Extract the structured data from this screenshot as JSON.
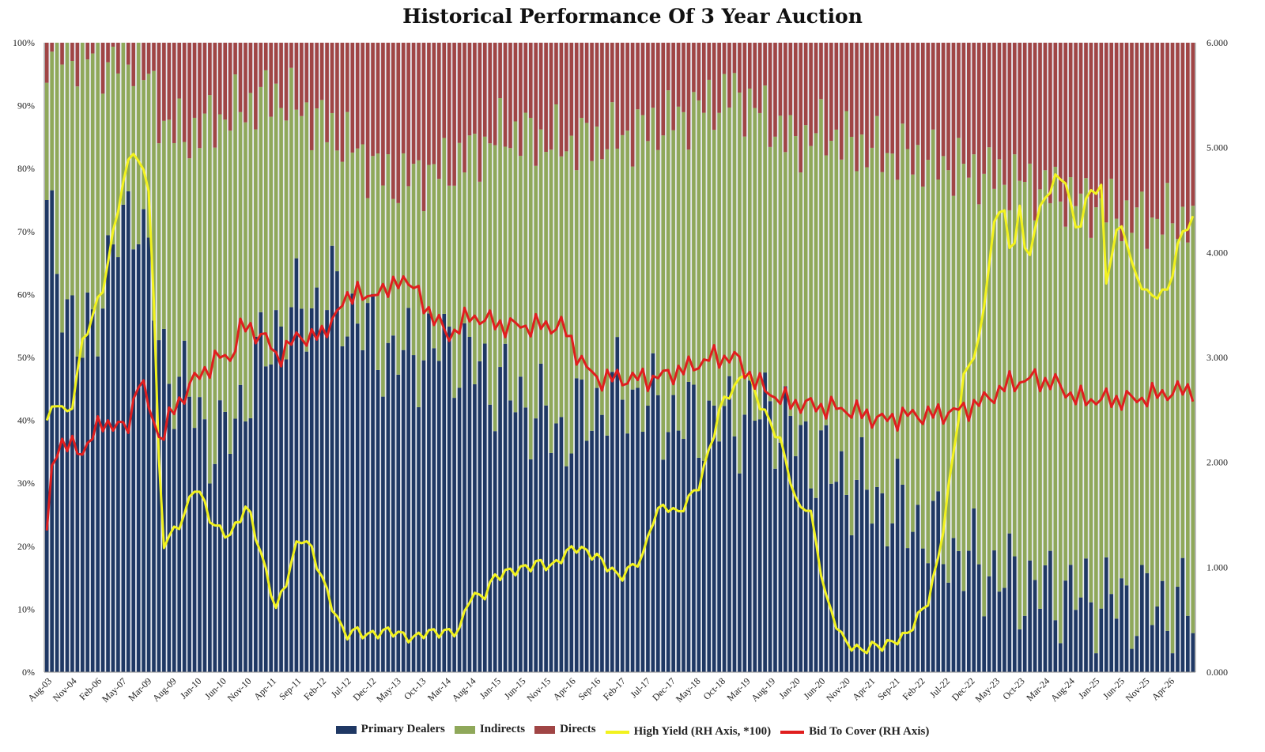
{
  "title": "Historical Performance Of 3 Year Auction",
  "colors": {
    "primary_dealers": "#1f3864",
    "indirects": "#8fa85a",
    "directs": "#a04545",
    "high_yield": "#f2f21e",
    "bid_to_cover": "#e01e1e",
    "bar_gap": "#e9ecf3"
  },
  "legend": [
    {
      "label": "Primary Dealers",
      "kind": "bar",
      "color_key": "primary_dealers"
    },
    {
      "label": "Indirects",
      "kind": "bar",
      "color_key": "indirects"
    },
    {
      "label": "Directs",
      "kind": "bar",
      "color_key": "directs"
    },
    {
      "label": "High Yield (RH Axis, *100)",
      "kind": "line",
      "color_key": "high_yield"
    },
    {
      "label": "Bid To Cover (RH Axis)",
      "kind": "line",
      "color_key": "bid_to_cover"
    }
  ],
  "chart_data": {
    "type": "bar",
    "stacked": true,
    "title": "Historical Performance Of 3 Year Auction",
    "left_axis": {
      "ticks": [
        "0%",
        "10%",
        "20%",
        "30%",
        "40%",
        "50%",
        "60%",
        "70%",
        "80%",
        "90%",
        "100%"
      ],
      "ylim": [
        0,
        100
      ]
    },
    "right_axis": {
      "ticks": [
        "0.000",
        "1.000",
        "2.000",
        "3.000",
        "4.000",
        "5.000",
        "6.000"
      ],
      "ylim": [
        0,
        6
      ]
    },
    "x_tick_labels": [
      "Aug-03",
      "Nov-04",
      "Feb-06",
      "May-07",
      "Mar-09",
      "Aug-09",
      "Jan-10",
      "Jun-10",
      "Nov-10",
      "Apr-11",
      "Sep-11",
      "Feb-12",
      "Jul-12",
      "Dec-12",
      "May-13",
      "Oct-13",
      "Mar-14",
      "Aug-14",
      "Jan-15",
      "Jun-15",
      "Nov-15",
      "Apr-16",
      "Sep-16",
      "Feb-17",
      "Jul-17",
      "Dec-17",
      "May-18",
      "Oct-18",
      "Mar-19",
      "Aug-19",
      "Jan-20",
      "Jun-20",
      "Nov-20",
      "Apr-21",
      "Sep-21",
      "Feb-22",
      "Jul-22",
      "Dec-22",
      "May-23",
      "Oct-23",
      "Mar-24",
      "Aug-24",
      "Jan-25",
      "Jun-25",
      "Nov-25",
      "Apr-26"
    ],
    "num_auctions": 226,
    "bar_stack_keypoints": {
      "t": [
        0,
        0.03,
        0.06,
        0.08,
        0.1,
        0.12,
        0.15,
        0.2,
        0.25,
        0.3,
        0.35,
        0.4,
        0.45,
        0.5,
        0.55,
        0.6,
        0.63,
        0.65,
        0.68,
        0.7,
        0.72,
        0.75,
        0.8,
        0.85,
        0.9,
        0.95,
        1
      ],
      "primary_dealers_pct": [
        72,
        50,
        68,
        75,
        50,
        45,
        35,
        55,
        60,
        50,
        52,
        45,
        38,
        45,
        40,
        40,
        42,
        38,
        33,
        30,
        28,
        25,
        18,
        14,
        12,
        11,
        10
      ],
      "directs_pct": [
        1,
        2,
        3,
        2,
        12,
        15,
        12,
        8,
        14,
        22,
        20,
        14,
        16,
        15,
        12,
        8,
        12,
        16,
        14,
        16,
        17,
        18,
        20,
        22,
        25,
        28,
        28
      ]
    },
    "series": [
      {
        "name": "High Yield (RH Axis, *100)",
        "axis": "right",
        "keypoints": {
          "t": [
            0,
            0.01,
            0.02,
            0.03,
            0.05,
            0.065,
            0.075,
            0.09,
            0.095,
            0.1,
            0.115,
            0.12,
            0.13,
            0.145,
            0.16,
            0.175,
            0.19,
            0.2,
            0.21,
            0.22,
            0.23,
            0.25,
            0.26,
            0.27,
            0.28,
            0.3,
            0.31,
            0.32,
            0.33,
            0.35,
            0.36,
            0.37,
            0.38,
            0.39,
            0.4,
            0.42,
            0.43,
            0.44,
            0.46,
            0.48,
            0.5,
            0.51,
            0.52,
            0.53,
            0.54,
            0.55,
            0.57,
            0.58,
            0.59,
            0.6,
            0.61,
            0.62,
            0.63,
            0.64,
            0.65,
            0.655,
            0.665,
            0.68,
            0.695,
            0.71,
            0.72,
            0.73,
            0.75,
            0.77,
            0.78,
            0.79,
            0.8,
            0.815,
            0.82,
            0.825,
            0.835,
            0.84,
            0.845,
            0.85,
            0.855,
            0.86,
            0.87,
            0.88,
            0.89,
            0.895,
            0.9,
            0.91,
            0.92,
            0.925,
            0.93,
            0.935,
            0.94,
            0.945,
            0.95,
            0.96,
            0.97,
            0.975,
            0.98,
            0.99,
            1.0
          ],
          "values": [
            2.4,
            2.6,
            2.4,
            3.1,
            3.7,
            4.6,
            5.0,
            4.6,
            3.0,
            1.2,
            1.4,
            1.5,
            1.8,
            1.4,
            1.3,
            1.6,
            1.0,
            0.6,
            0.9,
            1.3,
            1.2,
            0.6,
            0.35,
            0.4,
            0.35,
            0.4,
            0.35,
            0.32,
            0.38,
            0.38,
            0.4,
            0.75,
            0.7,
            0.9,
            0.95,
            1.0,
            1.05,
            1.0,
            1.2,
            1.1,
            0.9,
            1.0,
            1.1,
            1.5,
            1.6,
            1.5,
            1.8,
            2.2,
            2.6,
            2.7,
            2.9,
            2.6,
            2.4,
            2.2,
            1.8,
            1.55,
            1.6,
            0.7,
            0.3,
            0.2,
            0.25,
            0.25,
            0.35,
            0.7,
            1.2,
            2.0,
            2.8,
            3.2,
            3.7,
            4.2,
            4.5,
            4.0,
            4.1,
            4.6,
            3.7,
            4.2,
            4.5,
            4.7,
            4.7,
            4.3,
            4.2,
            4.6,
            4.6,
            3.6,
            4.1,
            4.2,
            4.3,
            3.9,
            3.8,
            3.6,
            3.6,
            3.6,
            3.7,
            4.2,
            4.3
          ]
        }
      },
      {
        "name": "Bid To Cover (RH Axis)",
        "axis": "right",
        "keypoints": {
          "t": [
            0,
            0.005,
            0.01,
            0.03,
            0.05,
            0.07,
            0.08,
            0.09,
            0.1,
            0.11,
            0.13,
            0.15,
            0.16,
            0.17,
            0.19,
            0.2,
            0.22,
            0.24,
            0.25,
            0.26,
            0.27,
            0.28,
            0.29,
            0.3,
            0.31,
            0.33,
            0.35,
            0.37,
            0.4,
            0.42,
            0.45,
            0.47,
            0.48,
            0.5,
            0.53,
            0.56,
            0.58,
            0.6,
            0.62,
            0.64,
            0.66,
            0.7,
            0.73,
            0.75,
            0.77,
            0.8,
            0.82,
            0.84,
            0.86,
            0.88,
            0.9,
            0.92,
            0.95,
            0.97,
            1.0
          ],
          "values": [
            1.3,
            2.0,
            2.2,
            2.1,
            2.4,
            2.3,
            2.8,
            2.5,
            2.2,
            2.5,
            2.8,
            3.0,
            3.0,
            3.3,
            3.2,
            3.0,
            3.2,
            3.2,
            3.4,
            3.5,
            3.7,
            3.5,
            3.7,
            3.6,
            3.8,
            3.5,
            3.2,
            3.4,
            3.3,
            3.3,
            3.3,
            2.9,
            2.8,
            2.8,
            2.8,
            2.9,
            3.0,
            3.0,
            2.75,
            2.6,
            2.55,
            2.5,
            2.4,
            2.45,
            2.45,
            2.5,
            2.6,
            2.75,
            2.8,
            2.75,
            2.6,
            2.6,
            2.6,
            2.65,
            2.7
          ]
        }
      }
    ]
  }
}
